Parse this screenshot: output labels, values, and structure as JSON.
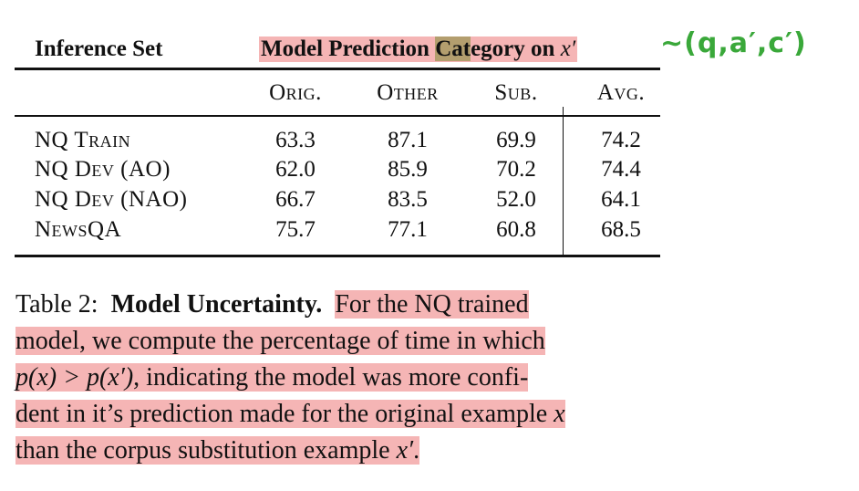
{
  "table": {
    "header_inference": "Inference Set",
    "header_group_pre": "Model Prediction ",
    "header_group_dark": "Cat",
    "header_group_post": "egory on ",
    "header_group_var": "x′",
    "columns": [
      "Orig.",
      "Other",
      "Sub.",
      "Avg."
    ],
    "rows": [
      {
        "label": "NQ Train",
        "values": [
          "63.3",
          "87.1",
          "69.9",
          "74.2"
        ]
      },
      {
        "label": "NQ Dev (AO)",
        "values": [
          "62.0",
          "85.9",
          "70.2",
          "74.4"
        ]
      },
      {
        "label": "NQ Dev (NAO)",
        "values": [
          "66.7",
          "83.5",
          "52.0",
          "64.1"
        ]
      },
      {
        "label": "NewsQA",
        "values": [
          "75.7",
          "77.1",
          "60.8",
          "68.5"
        ]
      }
    ]
  },
  "annotation": {
    "text": "∼(q,a′,c′)",
    "color": "#3aa83a"
  },
  "caption": {
    "prefix": "Table 2:",
    "bold_title": "Model Uncertainty.",
    "line1_rest": "For the NQ trained",
    "line2": "model, we compute the percentage of time in which",
    "line3_math": "p(x) > p(x′)",
    "line3_rest": ", indicating the model was more confi-",
    "line4_pre": "dent in it’s prediction made for the original example ",
    "line4_var": "x",
    "line5_pre": "than the corpus substitution example ",
    "line5_var": "x′",
    "line5_end": "."
  },
  "colors": {
    "highlight_pink": "#f5b5b5",
    "highlight_dark": "#b39e6e"
  }
}
